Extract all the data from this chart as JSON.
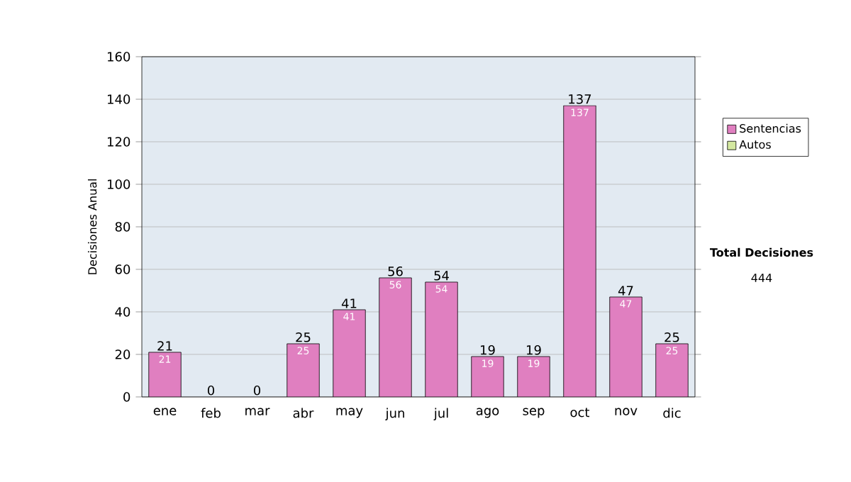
{
  "chart_data": {
    "type": "bar",
    "stacked": true,
    "ylabel": "Decisiones Anual",
    "categories": [
      "ene",
      "feb",
      "mar",
      "abr",
      "may",
      "jun",
      "jul",
      "ago",
      "sep",
      "oct",
      "nov",
      "dic"
    ],
    "series": [
      {
        "name": "Sentencias",
        "color": "#e07fc0",
        "values": [
          21,
          0,
          0,
          25,
          41,
          56,
          54,
          19,
          19,
          137,
          47,
          25
        ],
        "value_labels": [
          "21",
          null,
          null,
          "25",
          "41",
          "56",
          "54",
          "19",
          "19",
          "137",
          "47",
          "25"
        ]
      },
      {
        "name": "Autos",
        "color": "#d4e8a0",
        "values": [
          0,
          0,
          0,
          0,
          0,
          0,
          0,
          0,
          0,
          0,
          0,
          0
        ]
      }
    ],
    "totals": [
      "21",
      "0",
      "0",
      "25",
      "41",
      "56",
      "54",
      "19",
      "19",
      "137",
      "47",
      "25"
    ],
    "ylim": [
      0,
      160
    ],
    "yticks": [
      0,
      20,
      40,
      60,
      80,
      100,
      120,
      140,
      160
    ],
    "grid": "y",
    "legend": "right",
    "annotations": [
      "Total Decisiones",
      "444"
    ]
  }
}
